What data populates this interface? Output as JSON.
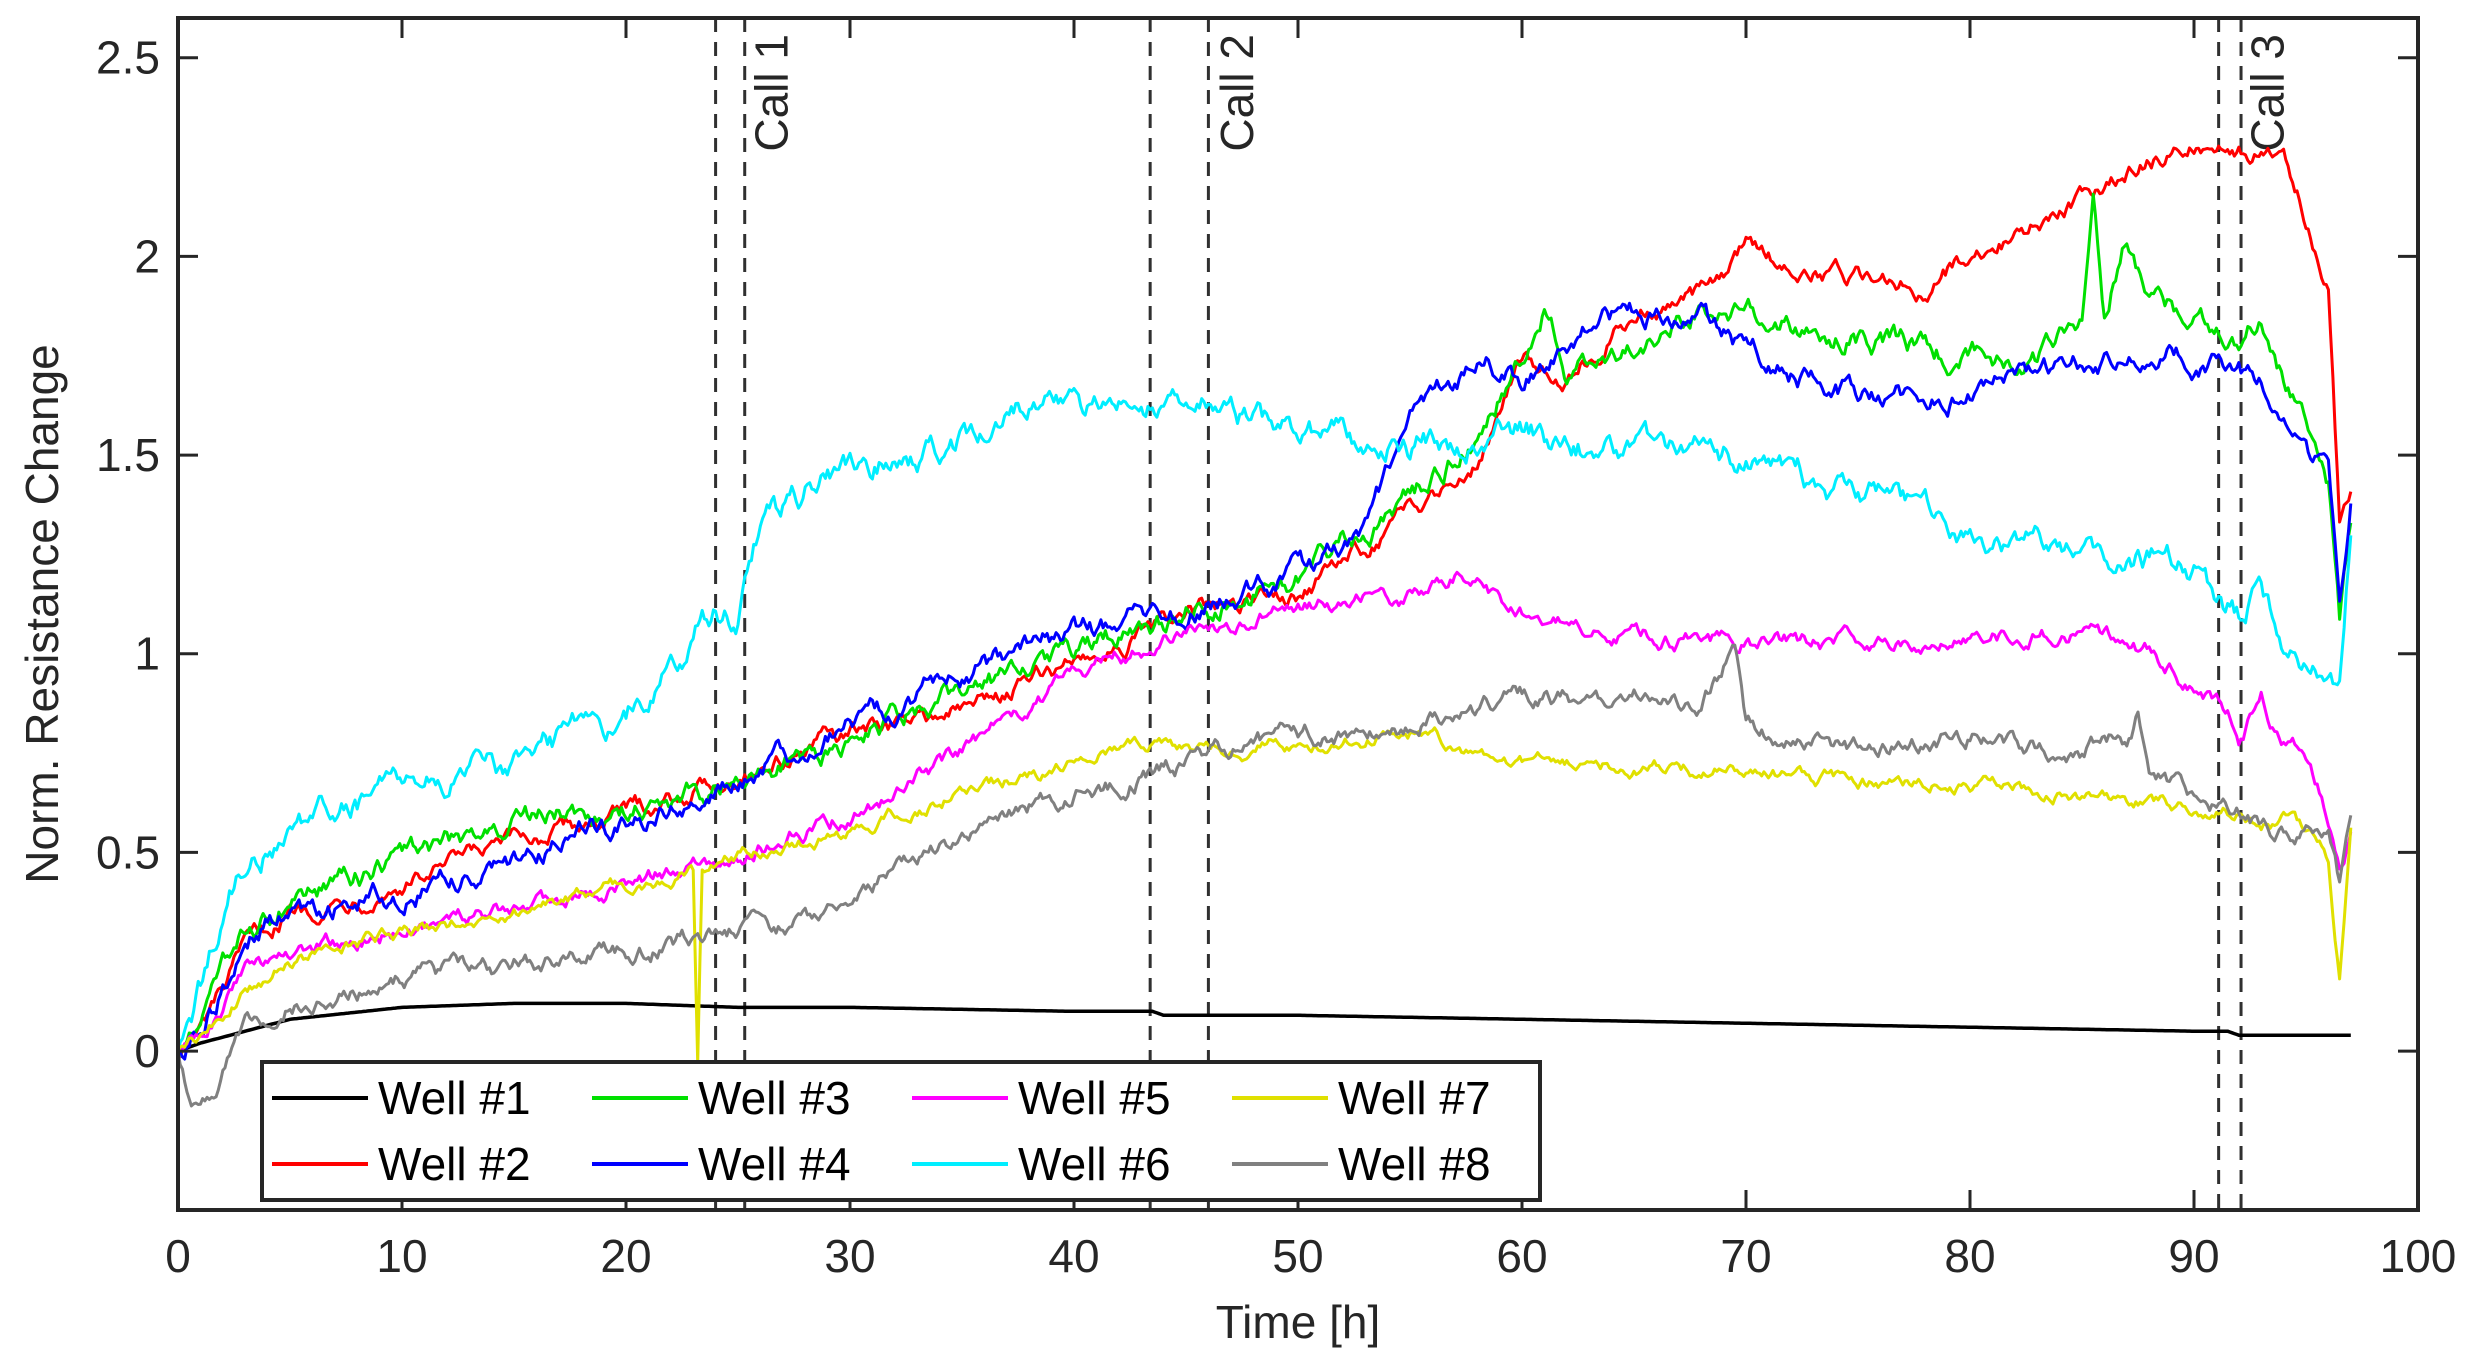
{
  "chart_data": {
    "type": "line",
    "title": "",
    "xlabel": "Time [h]",
    "ylabel": "Norm. Resistance Change",
    "xlim": [
      0,
      100
    ],
    "ylim": [
      -0.4,
      2.6
    ],
    "x_ticks": [
      0,
      10,
      20,
      30,
      40,
      50,
      60,
      70,
      80,
      90,
      100
    ],
    "y_ticks": [
      0,
      0.5,
      1,
      1.5,
      2,
      2.5
    ],
    "y_tick_labels": [
      "0",
      "0.5",
      "1",
      "1.5",
      "2",
      "2.5"
    ],
    "grid": false,
    "legend_position": "bottom-left",
    "events": [
      {
        "name": "Call 1",
        "lines": [
          24.0,
          25.3
        ],
        "label_x": 27.2
      },
      {
        "name": "Call 2",
        "lines": [
          43.4,
          46.0
        ],
        "label_x": 48.0
      },
      {
        "name": "Call 3",
        "lines": [
          91.1,
          92.1
        ],
        "label_x": 94.0
      }
    ],
    "series": [
      {
        "name": "Well #1",
        "color": "#000000",
        "noise": 0.0,
        "x": [
          0,
          1,
          3,
          5,
          10,
          15,
          20,
          25,
          30,
          40,
          43.5,
          44,
          50,
          60,
          70,
          80,
          90,
          91.5,
          92,
          97
        ],
        "values": [
          0,
          0.02,
          0.05,
          0.08,
          0.11,
          0.12,
          0.12,
          0.11,
          0.11,
          0.1,
          0.1,
          0.09,
          0.09,
          0.08,
          0.07,
          0.06,
          0.05,
          0.05,
          0.04,
          0.04
        ]
      },
      {
        "name": "Well #2",
        "color": "#ff0000",
        "noise": 0.02,
        "x": [
          0,
          1,
          3,
          5,
          10,
          15,
          20,
          25,
          30,
          35,
          40,
          45,
          50,
          55,
          58,
          60,
          62,
          65,
          68,
          70,
          72,
          75,
          78,
          80,
          82,
          85,
          88,
          90,
          92,
          94,
          95,
          96,
          96.5,
          97
        ],
        "values": [
          0,
          0.05,
          0.25,
          0.35,
          0.42,
          0.52,
          0.6,
          0.7,
          0.8,
          0.86,
          0.98,
          1.1,
          1.15,
          1.35,
          1.5,
          1.75,
          1.7,
          1.85,
          1.9,
          2.02,
          1.98,
          1.95,
          1.93,
          2.0,
          2.05,
          2.15,
          2.25,
          2.28,
          2.28,
          2.25,
          2.1,
          1.95,
          1.35,
          1.4
        ]
      },
      {
        "name": "Well #3",
        "color": "#00e000",
        "noise": 0.025,
        "x": [
          0,
          1,
          3,
          5,
          10,
          15,
          20,
          25,
          30,
          33,
          35,
          40,
          45,
          50,
          55,
          58,
          61,
          62,
          65,
          68,
          70,
          75,
          80,
          83,
          85,
          85.5,
          86,
          87,
          88,
          90,
          92,
          93,
          94,
          95,
          96,
          96.5,
          97
        ],
        "values": [
          0,
          0.05,
          0.3,
          0.38,
          0.48,
          0.58,
          0.62,
          0.68,
          0.78,
          0.85,
          0.9,
          1.0,
          1.1,
          1.2,
          1.38,
          1.55,
          1.88,
          1.72,
          1.75,
          1.88,
          1.85,
          1.8,
          1.75,
          1.75,
          1.85,
          2.15,
          1.85,
          2.05,
          1.9,
          1.85,
          1.75,
          1.85,
          1.7,
          1.55,
          1.4,
          1.05,
          1.3
        ]
      },
      {
        "name": "Well #4",
        "color": "#0000ff",
        "noise": 0.025,
        "x": [
          0,
          1,
          3,
          5,
          10,
          15,
          20,
          25,
          30,
          35,
          40,
          45,
          50,
          53,
          55,
          58,
          60,
          62,
          65,
          68,
          70,
          75,
          80,
          85,
          88,
          90,
          92,
          94,
          95,
          96,
          96.5,
          97
        ],
        "values": [
          0,
          0.05,
          0.28,
          0.35,
          0.4,
          0.48,
          0.58,
          0.68,
          0.82,
          0.95,
          1.05,
          1.1,
          1.2,
          1.3,
          1.55,
          1.75,
          1.7,
          1.8,
          1.85,
          1.85,
          1.75,
          1.65,
          1.65,
          1.72,
          1.78,
          1.75,
          1.7,
          1.62,
          1.5,
          1.45,
          1.15,
          1.42
        ]
      },
      {
        "name": "Well #5",
        "color": "#ff00ff",
        "noise": 0.018,
        "x": [
          0,
          1,
          3,
          5,
          10,
          15,
          20,
          25,
          30,
          35,
          40,
          45,
          50,
          55,
          57,
          60,
          63,
          65,
          70,
          75,
          80,
          85,
          88,
          90,
          91.5,
          92,
          93,
          94,
          95,
          96,
          96.5,
          97
        ],
        "values": [
          0,
          0.05,
          0.2,
          0.25,
          0.3,
          0.35,
          0.42,
          0.5,
          0.6,
          0.75,
          0.95,
          1.05,
          1.12,
          1.15,
          1.2,
          1.1,
          1.05,
          1.05,
          1.03,
          1.03,
          1.05,
          1.05,
          1.0,
          0.92,
          0.85,
          0.75,
          0.9,
          0.78,
          0.75,
          0.6,
          0.5,
          0.55
        ]
      },
      {
        "name": "Well #6",
        "color": "#00eeff",
        "noise": 0.03,
        "x": [
          0,
          1,
          2,
          3,
          5,
          10,
          15,
          20,
          24,
          25,
          26,
          28,
          30,
          35,
          38,
          40,
          43,
          45,
          48,
          50,
          55,
          60,
          65,
          70,
          75,
          80,
          85,
          90,
          92,
          93,
          94,
          95,
          96,
          96.5,
          97
        ],
        "values": [
          0,
          0.15,
          0.35,
          0.48,
          0.55,
          0.65,
          0.72,
          0.85,
          1.12,
          1.08,
          1.3,
          1.4,
          1.45,
          1.55,
          1.65,
          1.6,
          1.65,
          1.65,
          1.58,
          1.55,
          1.52,
          1.55,
          1.5,
          1.5,
          1.4,
          1.3,
          1.28,
          1.2,
          1.1,
          1.2,
          1.05,
          1.0,
          0.95,
          0.9,
          1.3
        ]
      },
      {
        "name": "Well #7",
        "color": "#e0e000",
        "noise": 0.015,
        "x": [
          0,
          1,
          3,
          5,
          10,
          15,
          20,
          23,
          23.2,
          23.4,
          23.6,
          25,
          30,
          35,
          40,
          43,
          45,
          50,
          55,
          60,
          65,
          70,
          75,
          80,
          85,
          90,
          92,
          93,
          94,
          95,
          96,
          96.5,
          97
        ],
        "values": [
          0,
          0.02,
          0.15,
          0.22,
          0.3,
          0.35,
          0.42,
          0.45,
          -0.04,
          0.45,
          0.45,
          0.5,
          0.55,
          0.65,
          0.72,
          0.78,
          0.75,
          0.78,
          0.8,
          0.73,
          0.72,
          0.7,
          0.68,
          0.67,
          0.64,
          0.62,
          0.6,
          0.55,
          0.58,
          0.55,
          0.48,
          0.18,
          0.55
        ]
      },
      {
        "name": "Well #8",
        "color": "#808080",
        "noise": 0.02,
        "x": [
          0,
          0.5,
          1,
          2,
          3,
          5,
          10,
          15,
          20,
          25,
          28,
          30,
          35,
          40,
          45,
          50,
          55,
          60,
          63,
          65,
          68,
          69.5,
          70,
          72,
          75,
          80,
          85,
          86,
          87,
          87.5,
          88,
          90,
          92,
          94,
          95,
          96,
          96.5,
          97
        ],
        "values": [
          0,
          -0.1,
          -0.14,
          -0.05,
          0.05,
          0.12,
          0.18,
          0.22,
          0.25,
          0.3,
          0.32,
          0.4,
          0.55,
          0.65,
          0.72,
          0.8,
          0.82,
          0.9,
          0.88,
          0.9,
          0.85,
          1.02,
          0.82,
          0.78,
          0.75,
          0.8,
          0.72,
          0.8,
          0.78,
          0.85,
          0.7,
          0.65,
          0.6,
          0.55,
          0.55,
          0.54,
          0.4,
          0.6
        ]
      }
    ]
  }
}
